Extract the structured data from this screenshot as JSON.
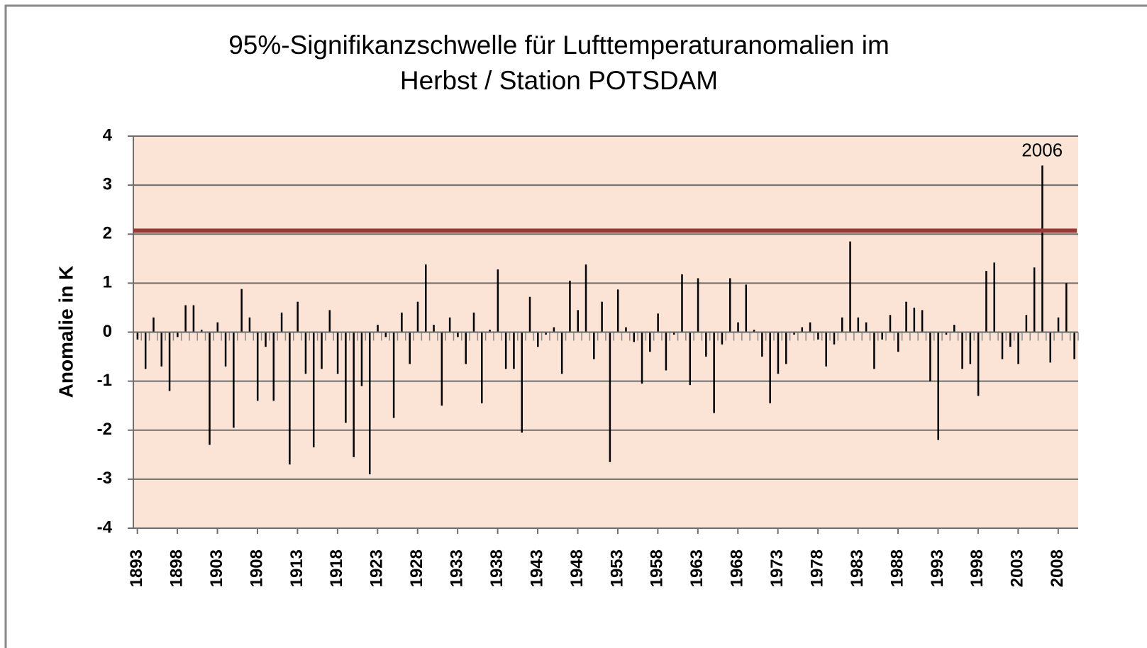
{
  "chart_data": {
    "type": "bar",
    "title": [
      "95%-Signifikanzschwelle  für Lufttemperaturanomalien  im",
      "Herbst / Station POTSDAM"
    ],
    "y_label": "Anomalie in K",
    "x": [
      1893,
      1894,
      1895,
      1896,
      1897,
      1898,
      1899,
      1900,
      1901,
      1902,
      1903,
      1904,
      1905,
      1906,
      1907,
      1908,
      1909,
      1910,
      1911,
      1912,
      1913,
      1914,
      1915,
      1916,
      1917,
      1918,
      1919,
      1920,
      1921,
      1922,
      1923,
      1924,
      1925,
      1926,
      1927,
      1928,
      1929,
      1930,
      1931,
      1932,
      1933,
      1934,
      1935,
      1936,
      1937,
      1938,
      1939,
      1940,
      1941,
      1942,
      1943,
      1944,
      1945,
      1946,
      1947,
      1948,
      1949,
      1950,
      1951,
      1952,
      1953,
      1954,
      1955,
      1956,
      1957,
      1958,
      1959,
      1960,
      1961,
      1962,
      1963,
      1964,
      1965,
      1966,
      1967,
      1968,
      1969,
      1970,
      1971,
      1972,
      1973,
      1974,
      1975,
      1976,
      1977,
      1978,
      1979,
      1980,
      1981,
      1982,
      1983,
      1984,
      1985,
      1986,
      1987,
      1988,
      1989,
      1990,
      1991,
      1992,
      1993,
      1994,
      1995,
      1996,
      1997,
      1998,
      1999,
      2000,
      2001,
      2002,
      2003,
      2004,
      2005,
      2006,
      2007,
      2008,
      2009,
      2010
    ],
    "values": [
      -0.15,
      -0.75,
      0.3,
      -0.7,
      -1.2,
      -0.1,
      0.55,
      0.55,
      0.05,
      -2.3,
      0.2,
      -0.7,
      -1.95,
      0.88,
      0.3,
      -1.4,
      -0.3,
      -1.4,
      0.4,
      -2.7,
      0.62,
      -0.85,
      -2.35,
      -0.75,
      0.45,
      -0.85,
      -1.85,
      -2.55,
      -1.1,
      -2.9,
      0.15,
      -0.1,
      -1.75,
      0.4,
      -0.65,
      0.62,
      1.38,
      0.15,
      -1.5,
      0.3,
      -0.1,
      -0.65,
      0.4,
      -1.45,
      0.05,
      1.28,
      -0.75,
      -0.75,
      -2.05,
      0.72,
      -0.3,
      -0.05,
      0.1,
      -0.85,
      1.05,
      0.45,
      1.38,
      -0.55,
      0.62,
      -2.65,
      0.87,
      0.1,
      -0.2,
      -1.05,
      -0.4,
      0.38,
      -0.78,
      -0.05,
      1.18,
      -1.08,
      1.1,
      -0.5,
      -1.65,
      -0.25,
      1.1,
      0.2,
      0.97,
      0.05,
      -0.5,
      -1.45,
      -0.85,
      -0.65,
      -0.05,
      0.1,
      0.2,
      -0.15,
      -0.7,
      -0.25,
      0.3,
      1.85,
      0.3,
      0.2,
      -0.75,
      -0.15,
      0.35,
      -0.4,
      0.62,
      0.5,
      0.45,
      -1.0,
      -2.2,
      -0.05,
      0.15,
      -0.75,
      -0.65,
      -1.3,
      1.25,
      1.42,
      -0.55,
      -0.3,
      -0.65,
      0.35,
      1.32,
      3.4,
      -0.62,
      0.3,
      1.0,
      -0.55
    ],
    "color": "#000000",
    "threshold": 2.07,
    "threshold_color": "#993838",
    "annotation": "2006",
    "plot_background": "#fbe4d5",
    "xlim": [
      1892.5,
      2010.5
    ],
    "xticks": [
      1893,
      1898,
      1903,
      1908,
      1913,
      1918,
      1923,
      1928,
      1933,
      1938,
      1943,
      1948,
      1953,
      1958,
      1963,
      1968,
      1973,
      1978,
      1983,
      1988,
      1993,
      1998,
      2003,
      2008
    ],
    "ylim": [
      -4,
      4
    ],
    "yticks": [
      -4,
      -3,
      -2,
      -1,
      0,
      1,
      2,
      3,
      4
    ],
    "grid": true
  }
}
